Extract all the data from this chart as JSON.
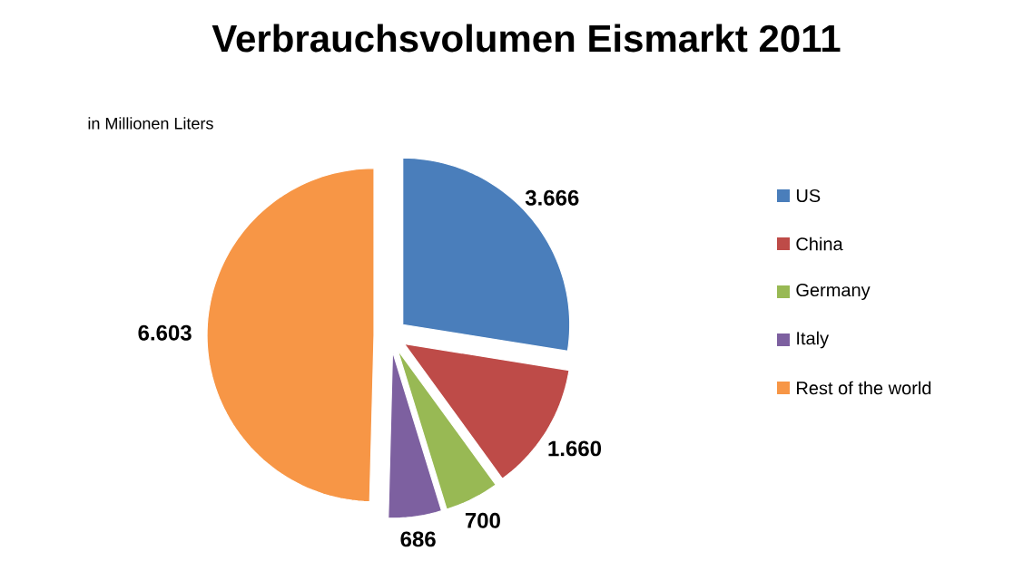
{
  "chart_data": {
    "type": "pie",
    "title": "Verbrauchsvolumen Eismarkt 2011",
    "annotations": [
      "in Millionen Liters"
    ],
    "categories": [
      "US",
      "China",
      "Germany",
      "Italy",
      "Rest of the world"
    ],
    "values": [
      3666,
      1660,
      700,
      686,
      6603
    ],
    "value_labels": [
      "3.666",
      "1.660",
      "700",
      "686",
      "6.603"
    ],
    "colors": [
      "#4a7ebb",
      "#be4b48",
      "#98b954",
      "#7d60a0",
      "#f79646"
    ],
    "legend": "right"
  }
}
